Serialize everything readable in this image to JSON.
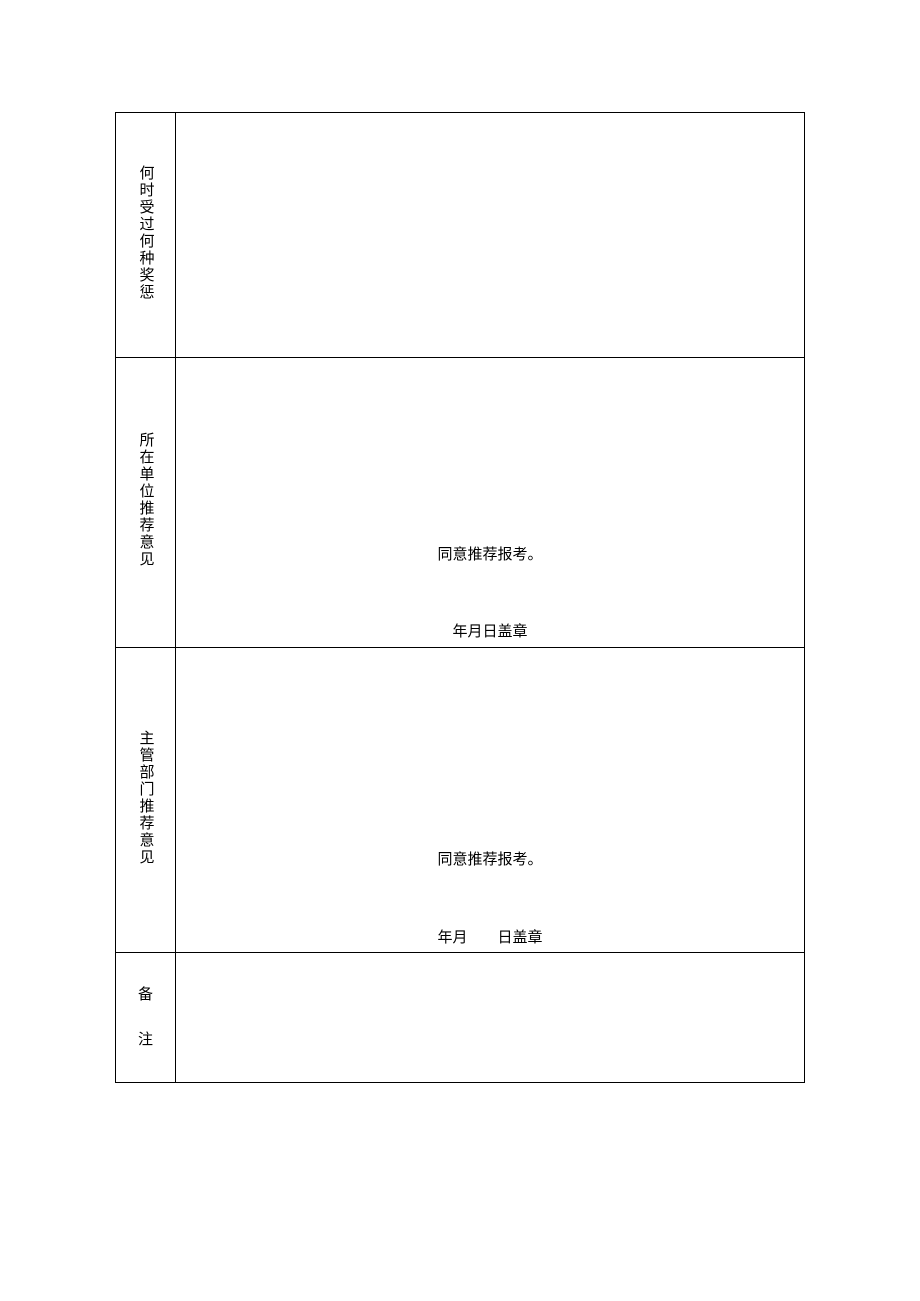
{
  "table": {
    "rows": [
      {
        "label": "何时受过何种奖惩",
        "content": ""
      },
      {
        "label": "所在单位推荐意见",
        "main_text": "同意推荐报考。",
        "date_text": "年月日盖章"
      },
      {
        "label": "主管部门推荐意见",
        "main_text": "同意推荐报考。",
        "date_text": "年月        日盖章"
      },
      {
        "label_line1": "备",
        "label_line2": "注",
        "content": ""
      }
    ],
    "styling": {
      "border_color": "#000000",
      "background_color": "#ffffff",
      "text_color": "#000000",
      "font_family": "SimSun",
      "font_size": 15,
      "label_column_width": 60,
      "content_column_width": 630
    }
  }
}
